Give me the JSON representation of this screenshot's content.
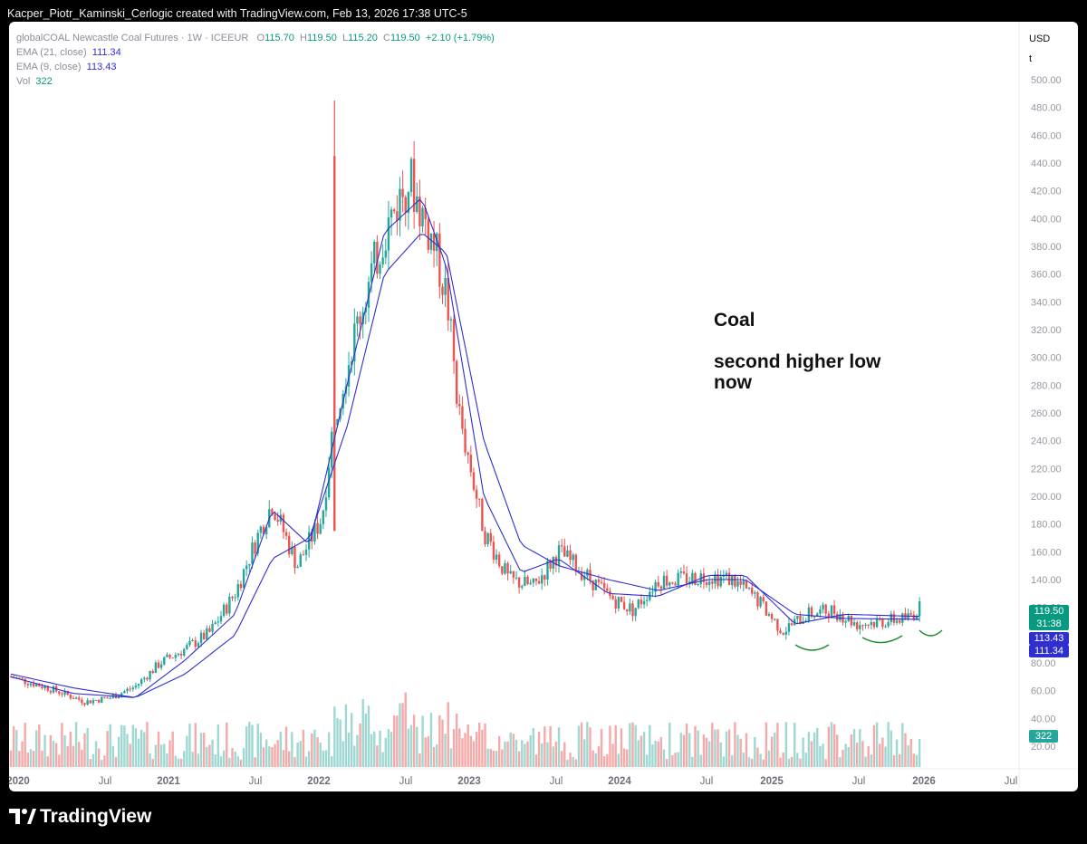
{
  "header": {
    "caption": "Kacper_Piotr_Kaminski_Cerlogic created with TradingView.com, Feb 13, 2026 17:38 UTC-5"
  },
  "legend": {
    "symbol": "globalCOAL Newcastle Coal Futures · 1W · ICEEUR",
    "o_label": "O",
    "o_value": "115.70",
    "h_label": "H",
    "h_value": "119.50",
    "l_label": "L",
    "l_value": "115.20",
    "c_label": "C",
    "c_value": "119.50",
    "change": "+2.10 (+1.79%)",
    "ema21_label": "EMA (21, close)",
    "ema21_value": "111.34",
    "ema9_label": "EMA (9, close)",
    "ema9_value": "113.43",
    "vol_label": "Vol",
    "vol_value": "322"
  },
  "toolbar": {
    "currency": "USD",
    "unit": "t"
  },
  "annotation": {
    "title": "Coal",
    "text": "second higher low now"
  },
  "price_labels": {
    "last": "119.50",
    "countdown": "31:38",
    "ema9": "113.43",
    "ema21": "111.34",
    "volume": "322"
  },
  "footer": {
    "brand": "TradingView"
  },
  "colors": {
    "up": "#26a69a",
    "down": "#ef5350",
    "ema": "#2f2fd0",
    "annotation_curve": "#1b8a2e"
  },
  "chart_data": {
    "type": "candlestick",
    "interval": "1W",
    "x_ticks": [
      "2020",
      "Jul",
      "2021",
      "Jul",
      "2022",
      "Jul",
      "2023",
      "Jul",
      "2024",
      "Jul",
      "2025",
      "Jul",
      "2026",
      "Jul"
    ],
    "y_ticks": [
      20,
      40,
      60,
      80,
      100,
      120,
      140,
      160,
      180,
      200,
      220,
      240,
      260,
      280,
      300,
      320,
      340,
      360,
      380,
      400,
      420,
      440,
      460,
      480,
      500
    ],
    "y_tick_labels": [
      "20.00",
      "40.00",
      "60.00",
      "80.00",
      "100.00",
      "120.00",
      "140.00",
      "160.00",
      "180.00",
      "200.00",
      "220.00",
      "240.00",
      "260.00",
      "280.00",
      "300.00",
      "320.00",
      "340.00",
      "360.00",
      "380.00",
      "400.00",
      "420.00",
      "440.00",
      "460.00",
      "480.00",
      "500.00"
    ],
    "ylim": [
      10,
      510
    ],
    "close_series": {
      "name": "globalCOAL Newcastle Coal Futures",
      "x": [
        "2020-01",
        "2020-04",
        "2020-07",
        "2020-09",
        "2020-11",
        "2021-01",
        "2021-03",
        "2021-05",
        "2021-07",
        "2021-09",
        "2021-10",
        "2021-12",
        "2022-02",
        "2022-03",
        "2022-05",
        "2022-07",
        "2022-09",
        "2022-11",
        "2022-12",
        "2023-01",
        "2023-03",
        "2023-05",
        "2023-07",
        "2023-09",
        "2023-11",
        "2024-01",
        "2024-03",
        "2024-05",
        "2024-07",
        "2024-09",
        "2024-11",
        "2025-01",
        "2025-03",
        "2025-05",
        "2025-07",
        "2025-09",
        "2025-11",
        "2026-01",
        "2026-02"
      ],
      "y": [
        70,
        62,
        52,
        55,
        63,
        80,
        90,
        102,
        130,
        175,
        195,
        150,
        185,
        260,
        330,
        390,
        430,
        380,
        345,
        260,
        175,
        140,
        135,
        160,
        145,
        128,
        118,
        140,
        140,
        143,
        140,
        125,
        103,
        115,
        118,
        108,
        110,
        112,
        119.5
      ]
    },
    "ema21": {
      "name": "EMA (21, close)",
      "x": [
        "2020-01",
        "2020-06",
        "2020-11",
        "2021-03",
        "2021-07",
        "2021-10",
        "2022-01",
        "2022-04",
        "2022-07",
        "2022-10",
        "2022-12",
        "2023-03",
        "2023-06",
        "2023-09",
        "2024-01",
        "2024-05",
        "2024-09",
        "2024-12",
        "2025-04",
        "2025-08",
        "2026-02"
      ],
      "y": [
        72,
        62,
        55,
        72,
        100,
        155,
        170,
        250,
        360,
        390,
        375,
        240,
        165,
        150,
        140,
        132,
        140,
        140,
        115,
        112,
        111.34
      ]
    },
    "ema9": {
      "name": "EMA (9, close)",
      "x": [
        "2020-01",
        "2020-06",
        "2020-11",
        "2021-03",
        "2021-07",
        "2021-10",
        "2022-01",
        "2022-04",
        "2022-07",
        "2022-10",
        "2022-12",
        "2023-03",
        "2023-06",
        "2023-09",
        "2024-01",
        "2024-05",
        "2024-09",
        "2024-12",
        "2025-04",
        "2025-08",
        "2026-02"
      ],
      "y": [
        70,
        58,
        55,
        82,
        115,
        190,
        165,
        280,
        390,
        415,
        365,
        200,
        145,
        155,
        130,
        128,
        143,
        143,
        108,
        115,
        113.43
      ]
    },
    "volume": {
      "name": "Vol",
      "last": 322,
      "scale_note": "volume pane, 60–80 typical bar heights on the lower scale"
    }
  }
}
